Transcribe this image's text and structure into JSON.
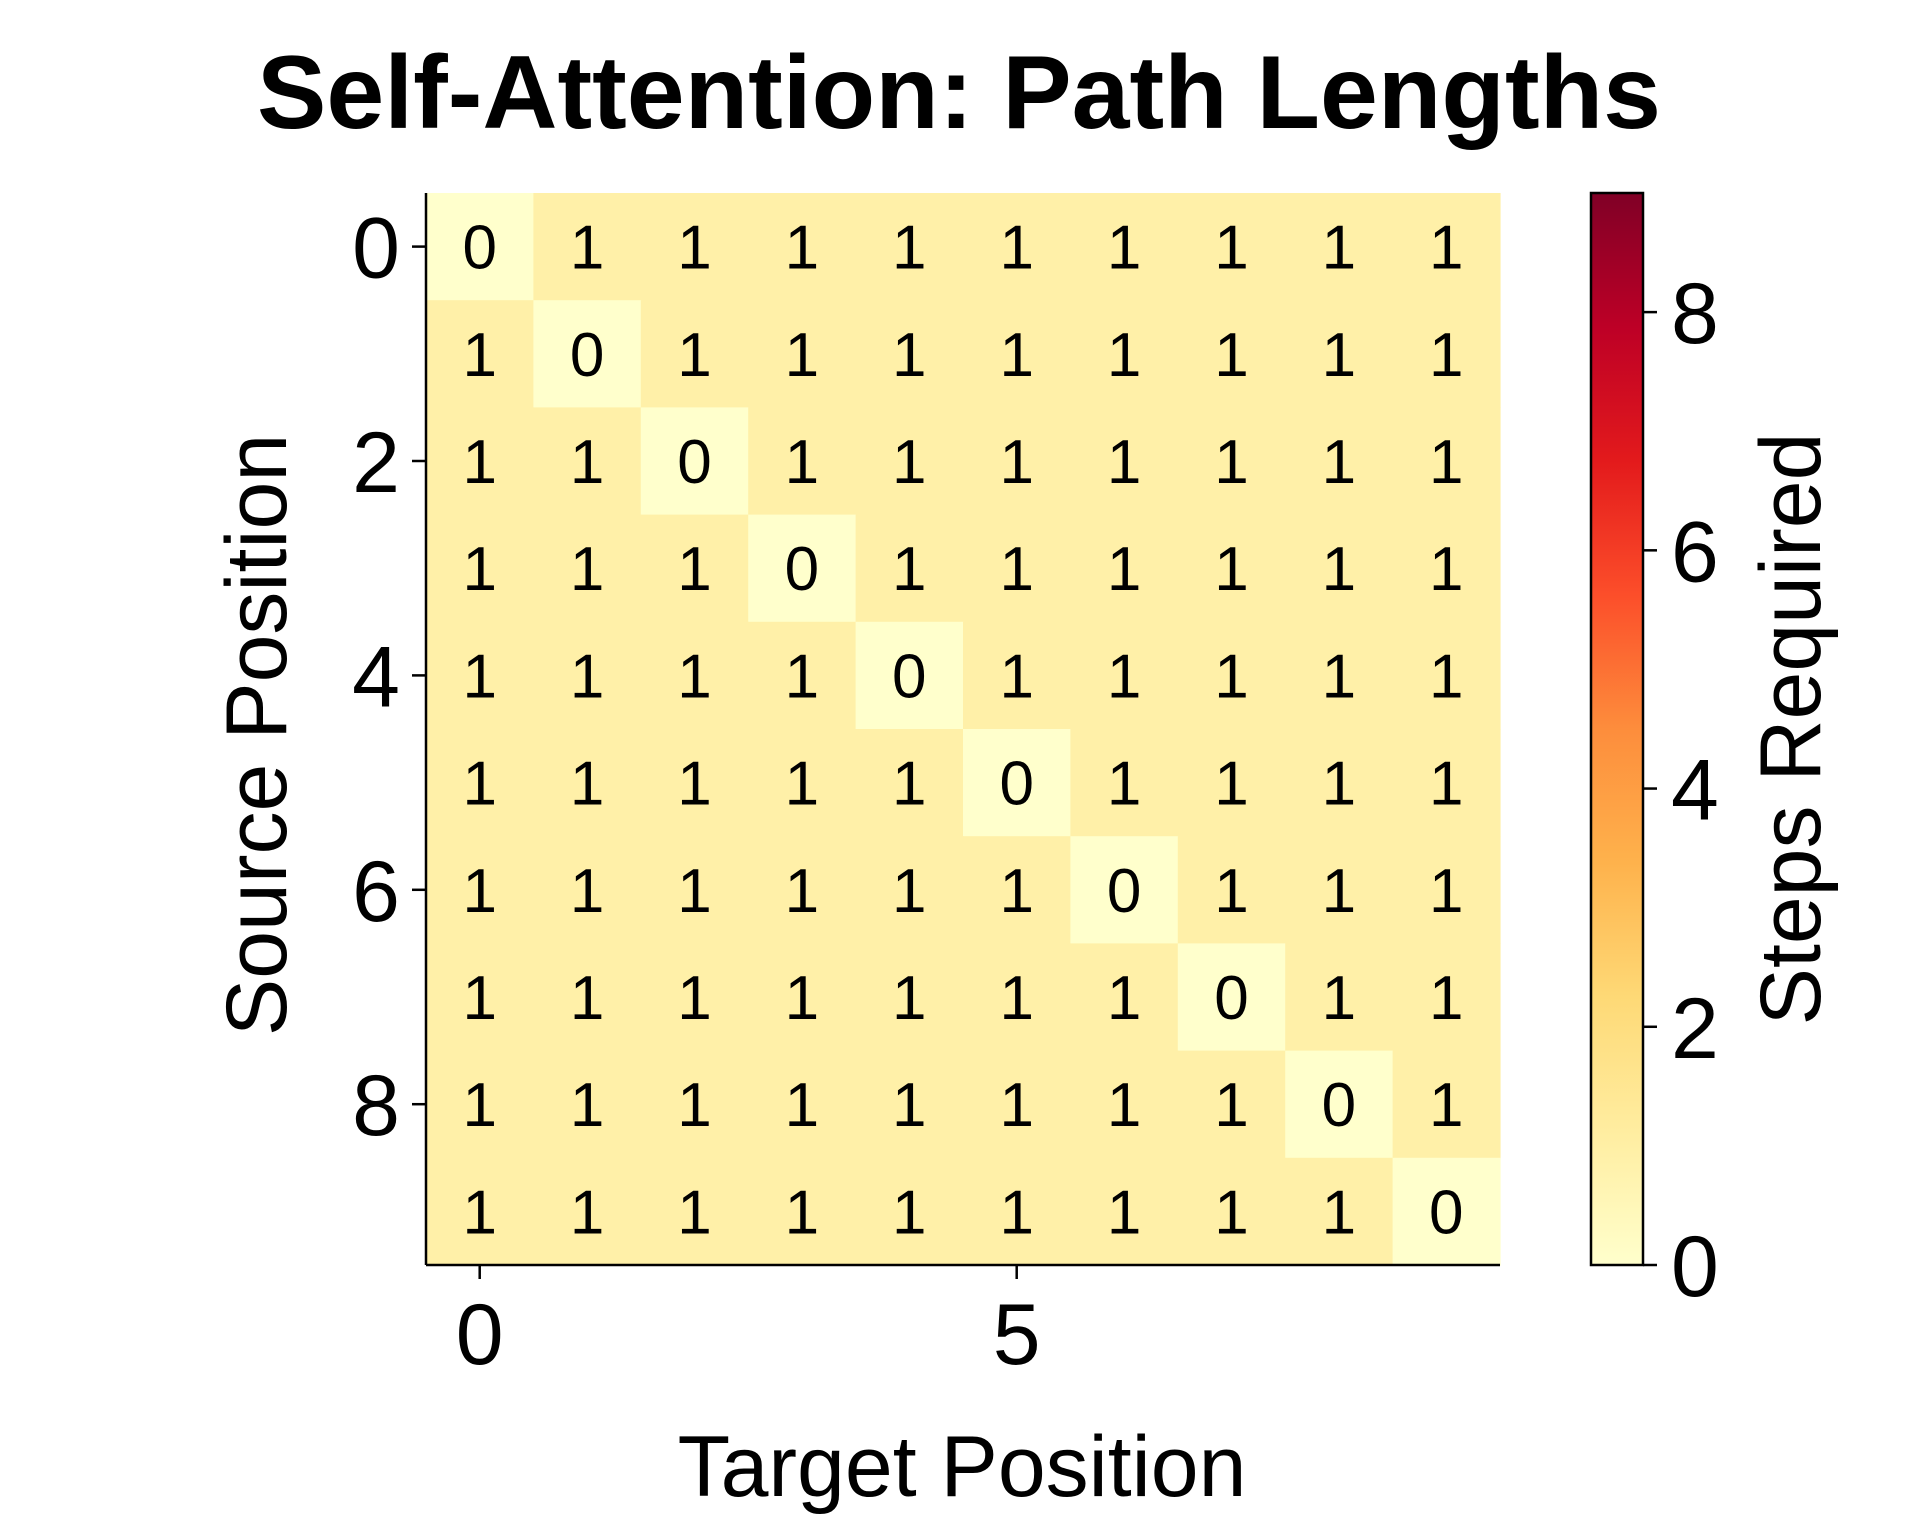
{
  "chart_data": {
    "type": "heatmap",
    "title": "Self-Attention: Path Lengths",
    "xlabel": "Target Position",
    "ylabel": "Source Position",
    "x_ticks": [
      0,
      5
    ],
    "y_ticks": [
      0,
      2,
      4,
      6,
      8
    ],
    "rows": 10,
    "cols": 10,
    "values": [
      [
        0,
        1,
        1,
        1,
        1,
        1,
        1,
        1,
        1,
        1
      ],
      [
        1,
        0,
        1,
        1,
        1,
        1,
        1,
        1,
        1,
        1
      ],
      [
        1,
        1,
        0,
        1,
        1,
        1,
        1,
        1,
        1,
        1
      ],
      [
        1,
        1,
        1,
        0,
        1,
        1,
        1,
        1,
        1,
        1
      ],
      [
        1,
        1,
        1,
        1,
        0,
        1,
        1,
        1,
        1,
        1
      ],
      [
        1,
        1,
        1,
        1,
        1,
        0,
        1,
        1,
        1,
        1
      ],
      [
        1,
        1,
        1,
        1,
        1,
        1,
        0,
        1,
        1,
        1
      ],
      [
        1,
        1,
        1,
        1,
        1,
        1,
        1,
        0,
        1,
        1
      ],
      [
        1,
        1,
        1,
        1,
        1,
        1,
        1,
        1,
        0,
        1
      ],
      [
        1,
        1,
        1,
        1,
        1,
        1,
        1,
        1,
        1,
        0
      ]
    ],
    "colorbar": {
      "label": "Steps Required",
      "range": [
        0,
        9
      ],
      "ticks": [
        0,
        2,
        4,
        6,
        8
      ],
      "colormap": "YlOrRd"
    },
    "colors": {
      "zero": "#ffffcc",
      "one": "#fff0a8"
    }
  }
}
